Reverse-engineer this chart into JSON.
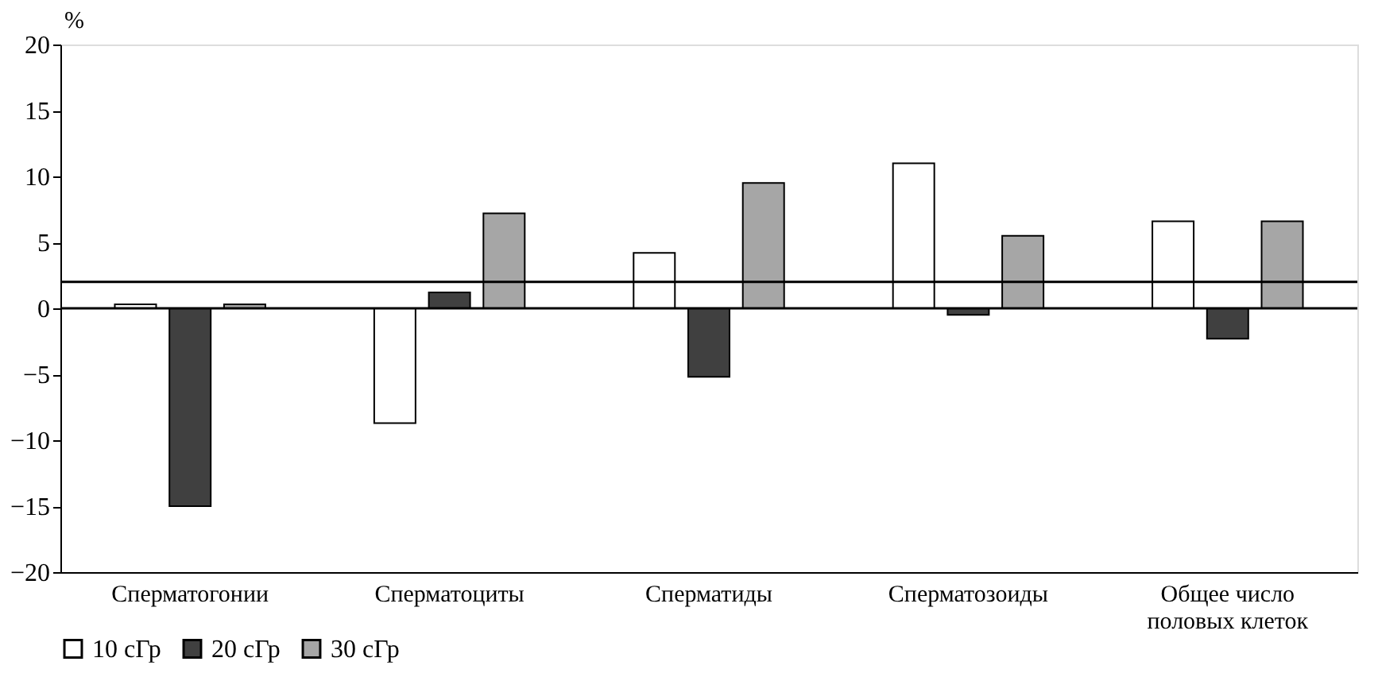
{
  "chart_data": {
    "type": "bar",
    "ylabel": "%",
    "categories": [
      "Сперматогонии",
      "Сперматоциты",
      "Сперматиды",
      "Сперматозоиды",
      "Общее число половых клеток"
    ],
    "series": [
      {
        "name": "10 сГр",
        "color": "#ffffff",
        "values": [
          0.3,
          -8.7,
          4.2,
          11,
          6.6
        ]
      },
      {
        "name": "20 сГр",
        "color": "#404040",
        "values": [
          -15,
          1.2,
          -5.2,
          -0.5,
          -2.3
        ]
      },
      {
        "name": "30 сГр",
        "color": "#a6a6a6",
        "values": [
          0.3,
          7.2,
          9.5,
          5.5,
          6.6
        ]
      }
    ],
    "ylim": [
      -20,
      20
    ],
    "yticks": [
      -20,
      -15,
      -10,
      -5,
      0,
      5,
      10,
      15,
      20
    ],
    "ref_lines": [
      {
        "axis": "y",
        "value": 0
      },
      {
        "axis": "y",
        "value": 2
      }
    ],
    "grid": false,
    "legend": "bottom"
  }
}
